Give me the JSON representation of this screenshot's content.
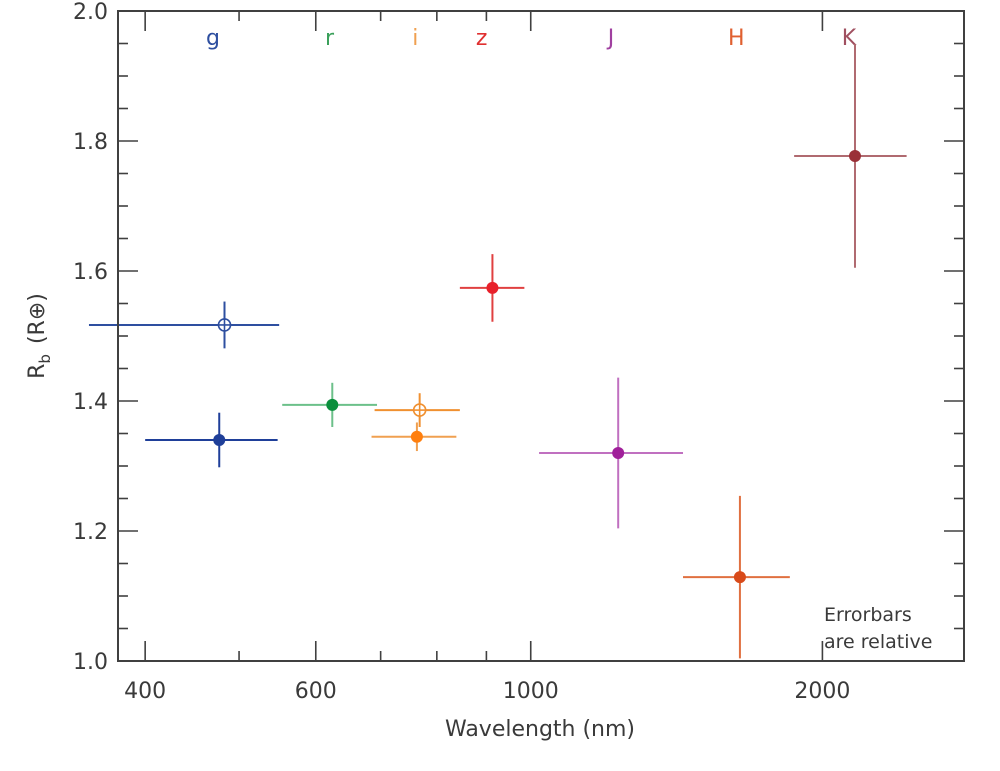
{
  "chart_data": {
    "type": "scatter",
    "title": "",
    "xlabel": "Wavelength (nm)",
    "ylabel_main": "R",
    "ylabel_sub": "b",
    "ylabel_unit": "(R⊕)",
    "xscale": "log",
    "xlim": [
      375,
      2800
    ],
    "ylim": [
      1.0,
      2.0
    ],
    "grid": false,
    "xticks_major": [
      400,
      600,
      1000,
      2000
    ],
    "xtick_labels": [
      "400",
      "600",
      "1000",
      "2000"
    ],
    "xticks_minor": [
      500,
      700,
      800,
      900
    ],
    "yticks_major": [
      1.0,
      1.2,
      1.4,
      1.6,
      1.8,
      2.0
    ],
    "ytick_labels": [
      "1.0",
      "1.2",
      "1.4",
      "1.6",
      "1.8",
      "2.0"
    ],
    "yticks_minor": [
      1.05,
      1.1,
      1.15,
      1.25,
      1.3,
      1.35,
      1.45,
      1.5,
      1.55,
      1.65,
      1.7,
      1.75,
      1.85,
      1.9,
      1.95
    ],
    "band_labels": [
      {
        "text": "g",
        "x": 470,
        "color": "#2e4fa0"
      },
      {
        "text": "r",
        "x": 620,
        "color": "#3aa05a"
      },
      {
        "text": "i",
        "x": 760,
        "color": "#f0a050"
      },
      {
        "text": "z",
        "x": 890,
        "color": "#e03030"
      },
      {
        "text": "J",
        "x": 1210,
        "color": "#a040a0"
      },
      {
        "text": "H",
        "x": 1630,
        "color": "#e06030"
      },
      {
        "text": "K",
        "x": 2130,
        "color": "#a05060"
      }
    ],
    "series": [
      {
        "name": "g (open)",
        "band": "g",
        "marker": "open",
        "color": "#2e4fa0",
        "x": 483,
        "y": 1.517,
        "xerr": [
          350,
          550
        ],
        "yerr": 0.036
      },
      {
        "name": "g",
        "band": "g",
        "marker": "filled",
        "color": "#1f3f99",
        "x": 477,
        "y": 1.34,
        "xerr": [
          400,
          548
        ],
        "yerr": 0.042
      },
      {
        "name": "r",
        "band": "r",
        "marker": "filled",
        "color": "#0a8f3c",
        "x": 624,
        "y": 1.394,
        "xerr": [
          554,
          694
        ],
        "yerr": 0.034,
        "errcolor": "#6cc08a"
      },
      {
        "name": "i (open)",
        "band": "i",
        "marker": "open",
        "color": "#f09030",
        "x": 768,
        "y": 1.386,
        "xerr": [
          690,
          845
        ],
        "yerr": 0.026
      },
      {
        "name": "i",
        "band": "i",
        "marker": "filled",
        "color": "#ff7f0e",
        "x": 763,
        "y": 1.345,
        "xerr": [
          685,
          838
        ],
        "yerr": 0.022,
        "errcolor": "#f0a050"
      },
      {
        "name": "z",
        "band": "z",
        "marker": "filled",
        "color": "#e8202a",
        "x": 913,
        "y": 1.574,
        "xerr": [
          845,
          985
        ],
        "yerr": 0.052,
        "errcolor": "#e04040"
      },
      {
        "name": "J",
        "band": "J",
        "marker": "filled",
        "color": "#a0209a",
        "x": 1231,
        "y": 1.32,
        "xerr": [
          1020,
          1436
        ],
        "yerr": 0.116,
        "errcolor": "#c070c0"
      },
      {
        "name": "H",
        "band": "H",
        "marker": "filled",
        "color": "#d84a1a",
        "x": 1644,
        "y": 1.129,
        "xerr": [
          1436,
          1851
        ],
        "yerr": 0.125,
        "errcolor": "#e07040"
      },
      {
        "name": "K",
        "band": "K",
        "marker": "filled",
        "color": "#9a3038",
        "x": 2161,
        "y": 1.777,
        "xerr": [
          1870,
          2443
        ],
        "yerr": 0.172,
        "errcolor": "#b06a70"
      }
    ],
    "annotation": [
      "Errorbars",
      "are relative"
    ]
  }
}
